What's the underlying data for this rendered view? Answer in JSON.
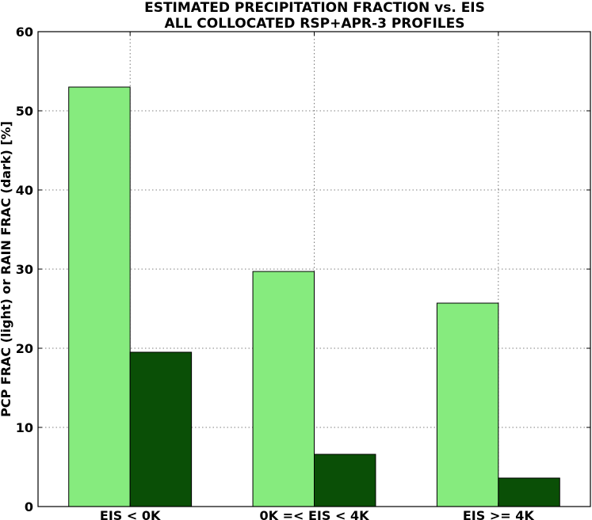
{
  "chart_data": {
    "type": "bar",
    "title": "ESTIMATED PRECIPITATION FRACTION vs. EIS",
    "subtitle": "ALL COLLOCATED RSP+APR-3 PROFILES",
    "xlabel": "",
    "ylabel": "PCP FRAC (light) or RAIN FRAC (dark) [%]",
    "categories": [
      "EIS < 0K",
      "0K =< EIS < 4K",
      "EIS >= 4K"
    ],
    "series": [
      {
        "values": [
          53.0,
          29.7,
          25.7
        ],
        "color": "#86eb7e"
      },
      {
        "values": [
          19.5,
          6.6,
          3.6
        ],
        "color": "#0a4f06"
      }
    ],
    "ylim": [
      0,
      60
    ],
    "yticks": [
      0,
      10,
      20,
      30,
      40,
      50,
      60
    ],
    "grid": true
  }
}
